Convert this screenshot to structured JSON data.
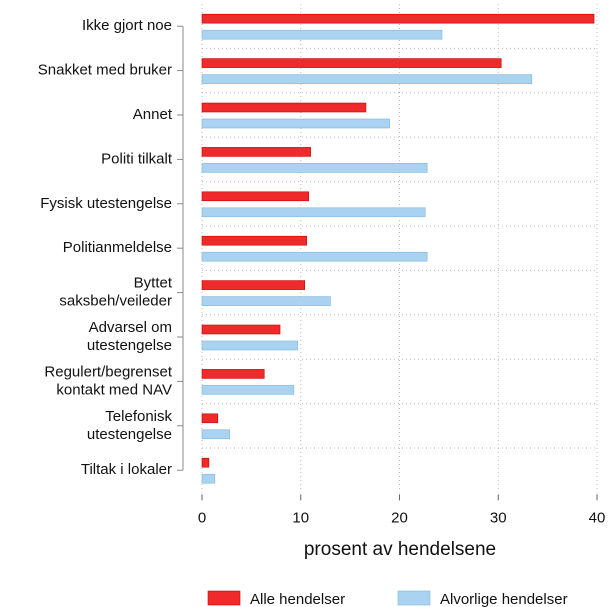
{
  "chart_data": {
    "type": "hbar",
    "categories": [
      "Ikke gjort noe",
      "Snakket med bruker",
      "Annet",
      "Politi tilkalt",
      "Fysisk utestengelse",
      "Politianmeldelse",
      "Byttet\nsaksbeh/veileder",
      "Advarsel om\nutestengelse",
      "Regulert/begrenset\nkontakt med NAV",
      "Telefonisk\nutestengelse",
      "Tiltak i lokaler"
    ],
    "series": [
      {
        "name": "Alle hendelser",
        "color": "#ee2a2a",
        "values": [
          39.7,
          30.3,
          16.6,
          11.0,
          10.8,
          10.6,
          10.4,
          7.9,
          6.3,
          1.6,
          0.7
        ]
      },
      {
        "name": "Alvorlige hendelser",
        "color": "#a9d3f0",
        "values": [
          24.3,
          33.4,
          19.0,
          22.8,
          22.6,
          22.8,
          13.0,
          9.7,
          9.3,
          2.8,
          1.3
        ]
      }
    ],
    "xlabel": "prosent av hendelsene",
    "xlim": [
      0,
      40
    ],
    "xticks": [
      0,
      10,
      20,
      30,
      40
    ],
    "grid": true,
    "legend": "bottom"
  }
}
